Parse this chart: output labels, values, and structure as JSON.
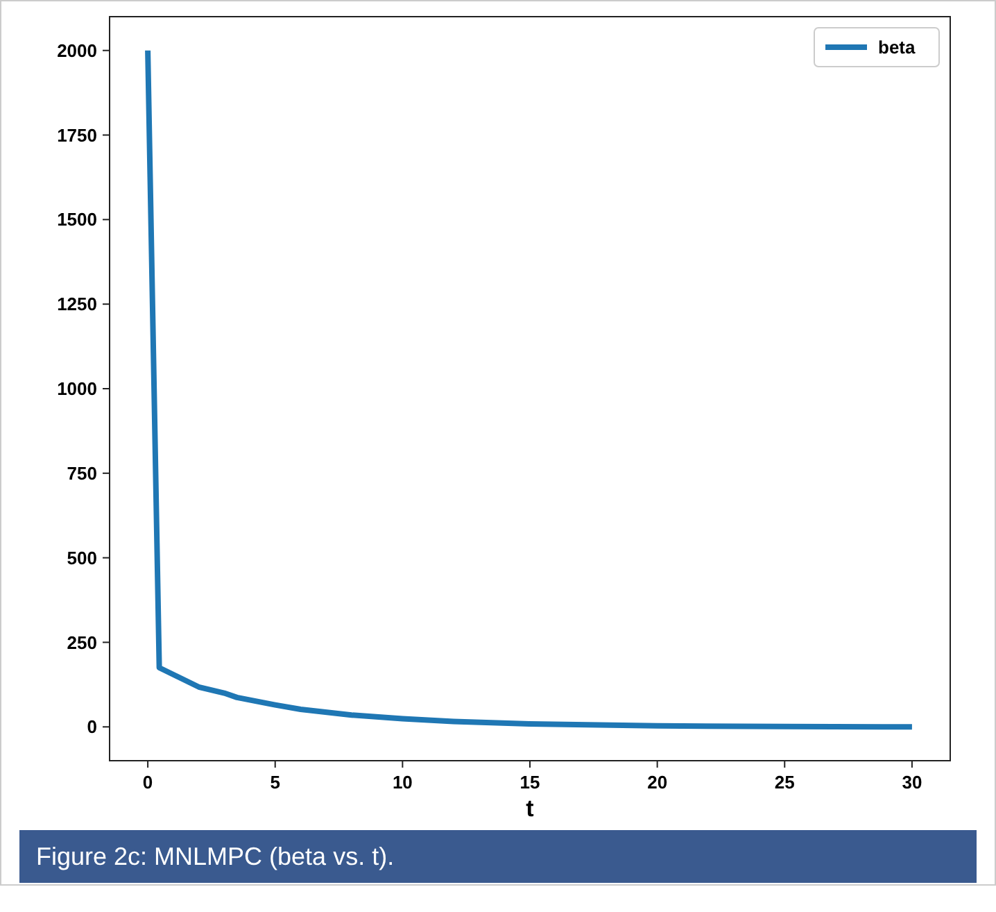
{
  "chart_data": {
    "type": "line",
    "xlabel": "t",
    "x": [
      0,
      0.45,
      2,
      3,
      3.5,
      5,
      6,
      8,
      10,
      12,
      15,
      20,
      25,
      30
    ],
    "series": [
      {
        "name": "beta",
        "color": "#1f77b4",
        "values": [
          2000,
          175,
          118,
          100,
          87,
          65,
          52,
          35,
          24,
          16,
          9,
          3,
          1,
          0
        ]
      }
    ],
    "xlim": [
      -1.5,
      31.5
    ],
    "ylim": [
      -100,
      2100
    ],
    "xticks": [
      0,
      5,
      10,
      15,
      20,
      25,
      30
    ],
    "yticks": [
      0,
      250,
      500,
      750,
      1000,
      1250,
      1500,
      1750,
      2000
    ],
    "legend": "top right",
    "grid": false,
    "marker": "none",
    "line_style": "solid",
    "annotations": [
      "Figure 2c: MNLMPC (beta vs. t)."
    ]
  }
}
